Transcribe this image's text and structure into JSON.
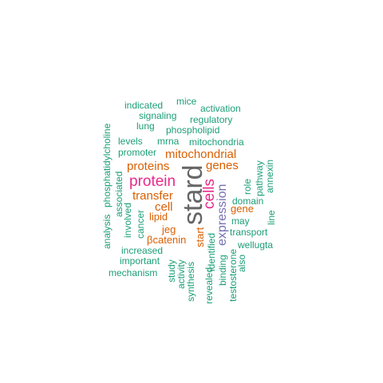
{
  "colors": {
    "background": "#ffffff",
    "gray": "#666666",
    "pink": "#e7298a",
    "orange": "#d95f02",
    "purple": "#7570b3",
    "teal": "#1b9e77"
  },
  "words": [
    {
      "text": "stard",
      "color": "gray",
      "rotate": true
    },
    {
      "text": "protein",
      "color": "pink",
      "rotate": false
    },
    {
      "text": "cells",
      "color": "pink",
      "rotate": true
    },
    {
      "text": "expression",
      "color": "purple",
      "rotate": true
    },
    {
      "text": "mitochondrial",
      "color": "orange",
      "rotate": false
    },
    {
      "text": "proteins",
      "color": "orange",
      "rotate": false
    },
    {
      "text": "genes",
      "color": "orange",
      "rotate": false
    },
    {
      "text": "transfer",
      "color": "orange",
      "rotate": false
    },
    {
      "text": "cell",
      "color": "orange",
      "rotate": false
    },
    {
      "text": "lipid",
      "color": "orange",
      "rotate": false
    },
    {
      "text": "jeg",
      "color": "orange",
      "rotate": false
    },
    {
      "text": "βcatenin",
      "color": "orange",
      "rotate": false
    },
    {
      "text": "start",
      "color": "orange",
      "rotate": true
    },
    {
      "text": "gene",
      "color": "orange",
      "rotate": false
    },
    {
      "text": "mice",
      "color": "teal",
      "rotate": false
    },
    {
      "text": "indicated",
      "color": "teal",
      "rotate": false
    },
    {
      "text": "activation",
      "color": "teal",
      "rotate": false
    },
    {
      "text": "signaling",
      "color": "teal",
      "rotate": false
    },
    {
      "text": "regulatory",
      "color": "teal",
      "rotate": false
    },
    {
      "text": "lung",
      "color": "teal",
      "rotate": false
    },
    {
      "text": "phospholipid",
      "color": "teal",
      "rotate": false
    },
    {
      "text": "levels",
      "color": "teal",
      "rotate": false
    },
    {
      "text": "mrna",
      "color": "teal",
      "rotate": false
    },
    {
      "text": "mitochondria",
      "color": "teal",
      "rotate": false
    },
    {
      "text": "promoter",
      "color": "teal",
      "rotate": false
    },
    {
      "text": "phosphatidylcholine",
      "color": "teal",
      "rotate": true
    },
    {
      "text": "analysis",
      "color": "teal",
      "rotate": true
    },
    {
      "text": "associated",
      "color": "teal",
      "rotate": true
    },
    {
      "text": "involved",
      "color": "teal",
      "rotate": true
    },
    {
      "text": "cancer",
      "color": "teal",
      "rotate": true
    },
    {
      "text": "role",
      "color": "teal",
      "rotate": true
    },
    {
      "text": "pathway",
      "color": "teal",
      "rotate": true
    },
    {
      "text": "annexin",
      "color": "teal",
      "rotate": true
    },
    {
      "text": "domain",
      "color": "teal",
      "rotate": false
    },
    {
      "text": "may",
      "color": "teal",
      "rotate": false
    },
    {
      "text": "line",
      "color": "teal",
      "rotate": true
    },
    {
      "text": "transport",
      "color": "teal",
      "rotate": false
    },
    {
      "text": "wellugta",
      "color": "teal",
      "rotate": false
    },
    {
      "text": "identified",
      "color": "teal",
      "rotate": true
    },
    {
      "text": "increased",
      "color": "teal",
      "rotate": false
    },
    {
      "text": "important",
      "color": "teal",
      "rotate": false
    },
    {
      "text": "mechanism",
      "color": "teal",
      "rotate": false
    },
    {
      "text": "study",
      "color": "teal",
      "rotate": true
    },
    {
      "text": "activity",
      "color": "teal",
      "rotate": true
    },
    {
      "text": "synthesis",
      "color": "teal",
      "rotate": true
    },
    {
      "text": "revealed",
      "color": "teal",
      "rotate": true
    },
    {
      "text": "binding",
      "color": "teal",
      "rotate": true
    },
    {
      "text": "testosterone",
      "color": "teal",
      "rotate": true
    },
    {
      "text": "also",
      "color": "teal",
      "rotate": true
    }
  ]
}
